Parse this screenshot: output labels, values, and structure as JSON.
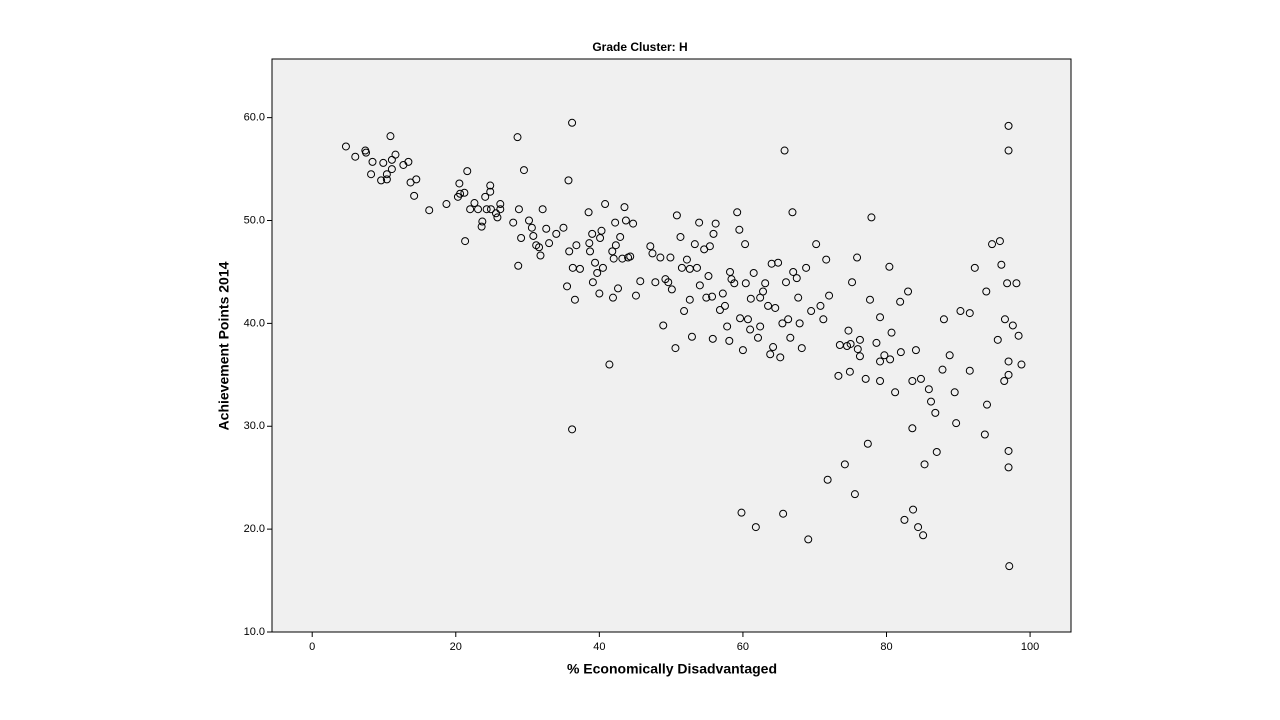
{
  "chart_data": {
    "type": "scatter",
    "title": "Grade Cluster: H",
    "x_label": "% Economically Disadvantaged",
    "y_label": "Achievement Points 2014",
    "color": "#000000",
    "background": "#f0f0f0",
    "x": [
      4.7,
      6,
      7.4,
      7.5,
      8.4,
      8.2,
      9.6,
      9.9,
      10.4,
      10.4,
      10.9,
      11.1,
      11.6,
      11.1,
      12.7,
      13.4,
      13.7,
      14.5,
      14.2,
      16.3,
      18.7,
      20.5,
      20.6,
      20.3,
      21.2,
      21.6,
      21.3,
      22,
      22.6,
      23.1,
      23.7,
      23.6,
      24.1,
      24.3,
      24.8,
      24.8,
      24.9,
      25.6,
      25.8,
      26.2,
      26.2,
      28,
      28.6,
      28.7,
      28.8,
      29.1,
      29.5,
      30.2,
      30.6,
      30.8,
      31.2,
      31.6,
      31.8,
      32.1,
      32.6,
      33,
      34,
      35,
      35.5,
      35.7,
      35.8,
      36.2,
      36.2,
      36.3,
      36.6,
      36.8,
      37.3,
      38.5,
      38.6,
      38.7,
      39,
      39.1,
      39.4,
      39.7,
      40,
      40.1,
      40.3,
      40.5,
      40.8,
      41.4,
      41.8,
      41.9,
      42,
      42.2,
      42.3,
      42.6,
      42.9,
      43.2,
      43.5,
      43.7,
      44,
      44.3,
      44.7,
      45.1,
      45.7,
      47.1,
      47.4,
      48.5,
      48.9,
      49.2,
      49.9,
      50.1,
      50.6,
      50.8,
      51.3,
      51.5,
      51.8,
      52.2,
      52.6,
      52.9,
      53.3,
      53.6,
      53.9,
      54,
      54.6,
      55.2,
      55.4,
      55.7,
      55.8,
      55.9,
      56.2,
      57.2,
      57.5,
      57.8,
      58.1,
      58.4,
      58.8,
      59.2,
      59.5,
      59.8,
      60,
      60.3,
      60.4,
      60.7,
      61.1,
      61.5,
      61.8,
      62.1,
      62.4,
      62.8,
      63.1,
      63.5,
      64,
      64.2,
      64.5,
      64.9,
      65.5,
      65.8,
      65.6,
      66,
      66.3,
      66.9,
      67,
      67.5,
      67.7,
      68.2,
      68.8,
      69.1,
      69.5,
      70.2,
      70.8,
      71.6,
      71.8,
      72,
      73.3,
      74.2,
      74.7,
      75.2,
      75.6,
      75.9,
      76.3,
      77.1,
      77.4,
      77.9,
      78.6,
      79.1,
      79.7,
      80.4,
      80.7,
      81.2,
      82,
      82.5,
      83,
      83.6,
      83.7,
      84.4,
      84.8,
      85.1,
      85.3,
      85.9,
      86.2,
      86.8,
      87,
      88,
      88.8,
      89.5,
      89.7,
      90.3,
      91.6,
      92.3,
      93.9,
      94,
      93.7,
      94.7,
      95.8,
      96,
      96.4,
      97,
      97,
      96.8,
      97,
      97,
      97,
      97,
      97.1,
      98.1,
      98.4,
      98.8,
      97.6,
      96.5,
      95.5,
      91.6,
      81.9,
      79.1,
      77.7,
      74.9,
      76.3,
      73.5,
      71.2,
      67.9,
      66.6,
      65.2,
      63.8,
      62.4,
      61,
      59.6,
      58.2,
      56.8,
      54.9,
      52.6,
      49.6,
      47.8,
      79.1,
      80.5,
      83.6,
      84.1,
      87.8,
      75,
      74.5,
      76
    ],
    "values": [
      57.2,
      56.2,
      56.8,
      56.6,
      55.7,
      54.5,
      53.9,
      55.6,
      54.5,
      54,
      58.2,
      55.9,
      56.4,
      55,
      55.4,
      55.7,
      53.7,
      54,
      52.4,
      51,
      51.6,
      53.6,
      52.6,
      52.3,
      52.7,
      54.8,
      48,
      51.1,
      51.7,
      51.1,
      49.9,
      49.4,
      52.3,
      51.1,
      53.4,
      52.8,
      51.1,
      50.7,
      50.3,
      51.6,
      51.1,
      49.8,
      58.1,
      45.6,
      51.1,
      48.3,
      54.9,
      50,
      49.3,
      48.5,
      47.6,
      47.4,
      46.6,
      51.1,
      49.2,
      47.8,
      48.7,
      49.3,
      43.6,
      53.9,
      47,
      59.5,
      29.7,
      45.4,
      42.3,
      47.6,
      45.3,
      50.8,
      47.8,
      47,
      48.7,
      44,
      45.9,
      44.9,
      42.9,
      48.3,
      49,
      45.4,
      51.6,
      36,
      47,
      42.5,
      46.3,
      49.8,
      47.6,
      43.4,
      48.4,
      46.3,
      51.3,
      50,
      46.4,
      46.5,
      49.7,
      42.7,
      44.1,
      47.5,
      46.8,
      46.4,
      39.8,
      44.3,
      46.4,
      43.3,
      37.6,
      50.5,
      48.4,
      45.4,
      41.2,
      46.2,
      42.3,
      38.7,
      47.7,
      45.4,
      49.8,
      43.7,
      47.2,
      44.6,
      47.5,
      42.6,
      38.5,
      48.7,
      49.7,
      42.9,
      41.7,
      39.7,
      38.3,
      44.3,
      43.9,
      50.8,
      49.1,
      21.6,
      37.4,
      47.7,
      43.9,
      40.4,
      42.4,
      44.9,
      20.2,
      38.6,
      39.7,
      43.1,
      43.9,
      41.7,
      45.8,
      37.7,
      41.5,
      45.9,
      40,
      56.8,
      21.5,
      44,
      40.4,
      50.8,
      45,
      44.4,
      42.5,
      37.6,
      45.4,
      19,
      41.2,
      47.7,
      41.7,
      46.2,
      24.8,
      42.7,
      34.9,
      26.3,
      39.3,
      44,
      23.4,
      46.4,
      38.4,
      34.6,
      28.3,
      50.3,
      38.1,
      34.4,
      36.9,
      45.5,
      39.1,
      33.3,
      37.2,
      20.9,
      43.1,
      29.8,
      21.9,
      20.2,
      34.6,
      19.4,
      26.3,
      33.6,
      32.4,
      31.3,
      27.5,
      40.4,
      36.9,
      33.3,
      30.3,
      41.2,
      35.4,
      45.4,
      43.1,
      32.1,
      29.2,
      47.7,
      48,
      45.7,
      34.4,
      59.2,
      56.8,
      43.9,
      36.3,
      35,
      27.6,
      26,
      16.4,
      43.9,
      38.8,
      36,
      39.8,
      40.4,
      38.4,
      41,
      42.1,
      40.6,
      42.3,
      35.3,
      36.8,
      37.9,
      40.4,
      40,
      38.6,
      36.7,
      37,
      42.5,
      39.4,
      40.5,
      45,
      41.3,
      42.5,
      45.3,
      44,
      44,
      36.3,
      36.5,
      34.4,
      37.4,
      35.5,
      38,
      37.8,
      37.5
    ],
    "xlim": [
      -5.6,
      105.7
    ],
    "ylim": [
      10,
      65.7
    ],
    "xticks": [
      0,
      20,
      40,
      60,
      80,
      100
    ],
    "yticks": [
      {
        "value": 10,
        "label": "10.0"
      },
      {
        "value": 20,
        "label": "20.0"
      },
      {
        "value": 30,
        "label": "30.0"
      },
      {
        "value": 40,
        "label": "40.0"
      },
      {
        "value": 50,
        "label": "50.0"
      },
      {
        "value": 60,
        "label": "60.0"
      }
    ]
  }
}
